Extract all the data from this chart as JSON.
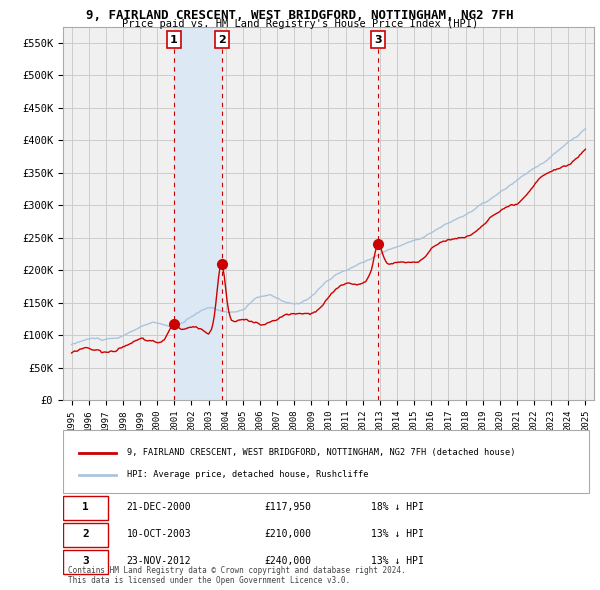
{
  "title": "9, FAIRLAND CRESCENT, WEST BRIDGFORD, NOTTINGHAM, NG2 7FH",
  "subtitle": "Price paid vs. HM Land Registry's House Price Index (HPI)",
  "legend_line1": "9, FAIRLAND CRESCENT, WEST BRIDGFORD, NOTTINGHAM, NG2 7FH (detached house)",
  "legend_line2": "HPI: Average price, detached house, Rushcliffe",
  "footer1": "Contains HM Land Registry data © Crown copyright and database right 2024.",
  "footer2": "This data is licensed under the Open Government Licence v3.0.",
  "table_data": [
    [
      "1",
      "21-DEC-2000",
      "£117,950",
      "18% ↓ HPI"
    ],
    [
      "2",
      "10-OCT-2003",
      "£210,000",
      "13% ↓ HPI"
    ],
    [
      "3",
      "23-NOV-2012",
      "£240,000",
      "13% ↓ HPI"
    ]
  ],
  "sale_dates_decimal": [
    2000.97,
    2003.78,
    2012.9
  ],
  "sale_prices": [
    117950,
    210000,
    240000
  ],
  "shaded_start": 2001.0,
  "shaded_end": 2003.78,
  "ylim": [
    0,
    575000
  ],
  "yticks": [
    0,
    50000,
    100000,
    150000,
    200000,
    250000,
    300000,
    350000,
    400000,
    450000,
    500000,
    550000
  ],
  "ytick_labels": [
    "£0",
    "£50K",
    "£100K",
    "£150K",
    "£200K",
    "£250K",
    "£300K",
    "£350K",
    "£400K",
    "£450K",
    "£500K",
    "£550K"
  ],
  "xlim_start": 1994.5,
  "xlim_end": 2025.5,
  "hpi_color": "#aac4dd",
  "price_color": "#cc0000",
  "shade_color": "#dce9f5",
  "vline_color": "#cc0000",
  "grid_color": "#cccccc",
  "bg_color": "#f0f0f0"
}
